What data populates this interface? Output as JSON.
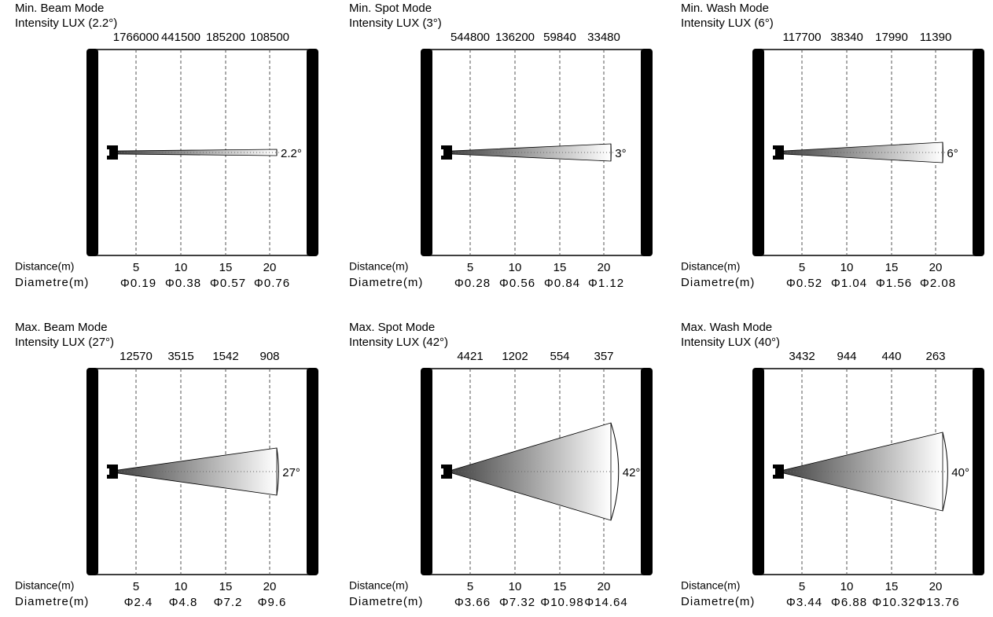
{
  "panels": [
    {
      "title": "Min. Beam Mode",
      "subtitle": "Intensity LUX (2.2°)",
      "intensities": [
        "1766000",
        "441500",
        "185200",
        "108500"
      ],
      "distance_label": "Distance(m)",
      "distances": [
        "5",
        "10",
        "15",
        "20"
      ],
      "diameter_label": "Diametre(m)",
      "diameters": [
        "Φ0.19",
        "Φ0.38",
        "Φ0.57",
        "Φ0.76"
      ],
      "angle": "2.2°"
    },
    {
      "title": "Min. Spot Mode",
      "subtitle": "Intensity LUX (3°)",
      "intensities": [
        "544800",
        "136200",
        "59840",
        "33480"
      ],
      "distance_label": "Distance(m)",
      "distances": [
        "5",
        "10",
        "15",
        "20"
      ],
      "diameter_label": "Diametre(m)",
      "diameters": [
        "Φ0.28",
        "Φ0.56",
        "Φ0.84",
        "Φ1.12"
      ],
      "angle": "3°"
    },
    {
      "title": "Min. Wash Mode",
      "subtitle": "Intensity LUX (6°)",
      "intensities": [
        "117700",
        "38340",
        "17990",
        "11390"
      ],
      "distance_label": "Distance(m)",
      "distances": [
        "5",
        "10",
        "15",
        "20"
      ],
      "diameter_label": "Diametre(m)",
      "diameters": [
        "Φ0.52",
        "Φ1.04",
        "Φ1.56",
        "Φ2.08"
      ],
      "angle": "6°"
    },
    {
      "title": "Max. Beam Mode",
      "subtitle": "Intensity LUX (27°)",
      "intensities": [
        "12570",
        "3515",
        "1542",
        "908"
      ],
      "distance_label": "Distance(m)",
      "distances": [
        "5",
        "10",
        "15",
        "20"
      ],
      "diameter_label": "Diametre(m)",
      "diameters": [
        "Φ2.4",
        "Φ4.8",
        "Φ7.2",
        "Φ9.6"
      ],
      "angle": "27°"
    },
    {
      "title": "Max. Spot Mode",
      "subtitle": "Intensity LUX (42°)",
      "intensities": [
        "4421",
        "1202",
        "554",
        "357"
      ],
      "distance_label": "Distance(m)",
      "distances": [
        "5",
        "10",
        "15",
        "20"
      ],
      "diameter_label": "Diametre(m)",
      "diameters": [
        "Φ3.66",
        "Φ7.32",
        "Φ10.98",
        "Φ14.64"
      ],
      "angle": "42°"
    },
    {
      "title": "Max. Wash Mode",
      "subtitle": "Intensity LUX (40°)",
      "intensities": [
        "3432",
        "944",
        "440",
        "263"
      ],
      "distance_label": "Distance(m)",
      "distances": [
        "5",
        "10",
        "15",
        "20"
      ],
      "diameter_label": "Diametre(m)",
      "diameters": [
        "Φ3.44",
        "Φ6.88",
        "Φ10.32",
        "Φ13.76"
      ],
      "angle": "40°"
    }
  ]
}
